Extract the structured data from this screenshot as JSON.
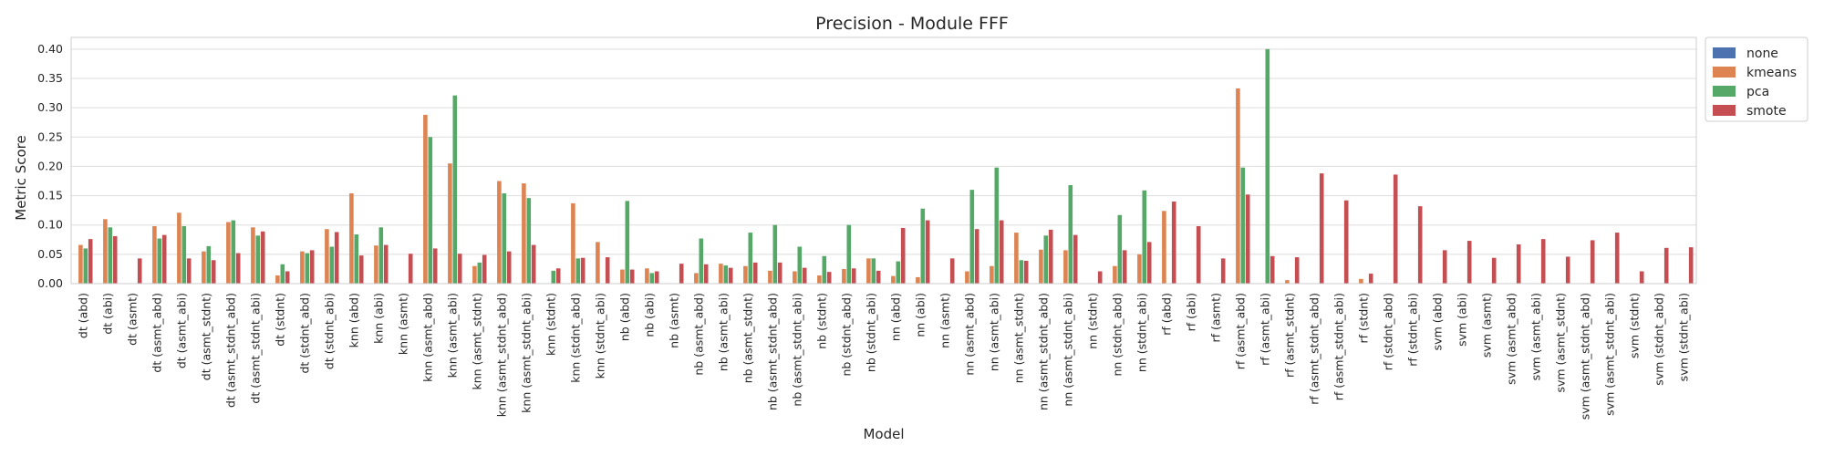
{
  "chart_data": {
    "type": "bar",
    "title": "Precision - Module FFF",
    "xlabel": "Model",
    "ylabel": "Metric Score",
    "ylim": [
      0,
      0.42
    ],
    "yticks": [
      "0.00",
      "0.05",
      "0.10",
      "0.15",
      "0.20",
      "0.25",
      "0.30",
      "0.35",
      "0.40"
    ],
    "grid": true,
    "legend_position": "outside top-right",
    "categories": [
      "dt (abd)",
      "dt (abi)",
      "dt (asmt)",
      "dt (asmt_abd)",
      "dt (asmt_abi)",
      "dt (asmt_stdnt)",
      "dt (asmt_stdnt_abd)",
      "dt (asmt_stdnt_abi)",
      "dt (stdnt)",
      "dt (stdnt_abd)",
      "dt (stdnt_abi)",
      "knn (abd)",
      "knn (abi)",
      "knn (asmt)",
      "knn (asmt_abd)",
      "knn (asmt_abi)",
      "knn (asmt_stdnt)",
      "knn (asmt_stdnt_abd)",
      "knn (asmt_stdnt_abi)",
      "knn (stdnt)",
      "knn (stdnt_abd)",
      "knn (stdnt_abi)",
      "nb (abd)",
      "nb (abi)",
      "nb (asmt)",
      "nb (asmt_abd)",
      "nb (asmt_abi)",
      "nb (asmt_stdnt)",
      "nb (asmt_stdnt_abd)",
      "nb (asmt_stdnt_abi)",
      "nb (stdnt)",
      "nb (stdnt_abd)",
      "nb (stdnt_abi)",
      "nn (abd)",
      "nn (abi)",
      "nn (asmt)",
      "nn (asmt_abd)",
      "nn (asmt_abi)",
      "nn (asmt_stdnt)",
      "nn (asmt_stdnt_abd)",
      "nn (asmt_stdnt_abi)",
      "nn (stdnt)",
      "nn (stdnt_abd)",
      "nn (stdnt_abi)",
      "rf (abd)",
      "rf (abi)",
      "rf (asmt)",
      "rf (asmt_abd)",
      "rf (asmt_abi)",
      "rf (asmt_stdnt)",
      "rf (asmt_stdnt_abd)",
      "rf (asmt_stdnt_abi)",
      "rf (stdnt)",
      "rf (stdnt_abd)",
      "rf (stdnt_abi)",
      "svm (abd)",
      "svm (abi)",
      "svm (asmt)",
      "svm (asmt_abd)",
      "svm (asmt_abi)",
      "svm (asmt_stdnt)",
      "svm (asmt_stdnt_abd)",
      "svm (asmt_stdnt_abi)",
      "svm (stdnt)",
      "svm (stdnt_abd)",
      "svm (stdnt_abi)"
    ],
    "series": [
      {
        "name": "none",
        "color": "#4c72b0",
        "values": [
          0,
          0,
          0,
          0,
          0,
          0,
          0,
          0,
          0,
          0,
          0,
          0,
          0,
          0,
          0,
          0,
          0,
          0,
          0,
          0,
          0,
          0,
          0,
          0,
          0,
          0,
          0,
          0,
          0,
          0,
          0,
          0,
          0,
          0,
          0,
          0,
          0,
          0,
          0,
          0,
          0,
          0,
          0,
          0,
          0,
          0,
          0,
          0,
          0,
          0,
          0,
          0,
          0,
          0,
          0,
          0,
          0,
          0,
          0,
          0,
          0,
          0,
          0,
          0,
          0,
          0
        ]
      },
      {
        "name": "kmeans",
        "color": "#dd8452",
        "values": [
          0.066,
          0.11,
          0,
          0.098,
          0.121,
          0.055,
          0.105,
          0.096,
          0.014,
          0.055,
          0.093,
          0.154,
          0.065,
          0,
          0.288,
          0.205,
          0.03,
          0.175,
          0.171,
          0,
          0.137,
          0.071,
          0.024,
          0.026,
          0,
          0.018,
          0.034,
          0.03,
          0.022,
          0.021,
          0.014,
          0.025,
          0.043,
          0.013,
          0.011,
          0,
          0.021,
          0.03,
          0.087,
          0.058,
          0.057,
          0,
          0.03,
          0.05,
          0.124,
          0,
          0,
          0.333,
          0,
          0.006,
          0,
          0,
          0.008,
          0,
          0,
          0,
          0,
          0,
          0,
          0,
          0,
          0,
          0,
          0,
          0,
          0
        ]
      },
      {
        "name": "pca",
        "color": "#55a868",
        "values": [
          0.06,
          0.096,
          0,
          0.077,
          0.098,
          0.064,
          0.108,
          0.082,
          0.033,
          0.052,
          0.063,
          0.084,
          0.096,
          0,
          0.25,
          0.321,
          0.036,
          0.154,
          0.146,
          0.022,
          0.043,
          0,
          0.141,
          0.018,
          0,
          0.077,
          0.031,
          0.087,
          0.1,
          0.063,
          0.047,
          0.1,
          0.043,
          0.038,
          0.128,
          0,
          0.16,
          0.198,
          0.04,
          0.082,
          0.168,
          0,
          0.117,
          0.159,
          0,
          0,
          0,
          0.198,
          0.4,
          0,
          0,
          0,
          0,
          0,
          0,
          0,
          0,
          0,
          0,
          0,
          0,
          0,
          0,
          0,
          0,
          0
        ]
      },
      {
        "name": "smote",
        "color": "#c44e52",
        "values": [
          0.076,
          0.081,
          0.043,
          0.083,
          0.043,
          0.04,
          0.052,
          0.089,
          0.021,
          0.057,
          0.088,
          0.048,
          0.066,
          0.051,
          0.06,
          0.051,
          0.049,
          0.055,
          0.066,
          0.026,
          0.044,
          0.045,
          0.024,
          0.021,
          0.034,
          0.033,
          0.027,
          0.036,
          0.036,
          0.027,
          0.02,
          0.026,
          0.022,
          0.095,
          0.108,
          0.043,
          0.093,
          0.108,
          0.039,
          0.092,
          0.083,
          0.021,
          0.057,
          0.071,
          0.14,
          0.098,
          0.043,
          0.152,
          0.047,
          0.045,
          0.188,
          0.142,
          0.017,
          0.186,
          0.132,
          0.057,
          0.073,
          0.044,
          0.067,
          0.076,
          0.046,
          0.074,
          0.087,
          0.021,
          0.061,
          0.062
        ]
      }
    ]
  }
}
